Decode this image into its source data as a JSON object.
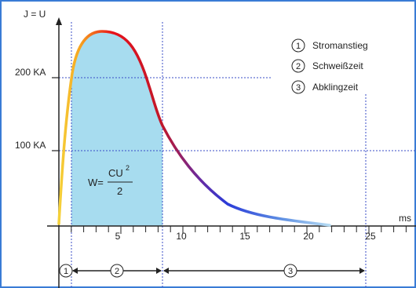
{
  "diagram": {
    "y_axis_label": "J = U",
    "x_axis_unit": "ms",
    "y_ticks": [
      {
        "label": "200 KA",
        "value": 200
      },
      {
        "label": "100 KA",
        "value": 100
      }
    ],
    "x_ticks": [
      {
        "label": "5",
        "value": 5
      },
      {
        "label": "10",
        "value": 10
      },
      {
        "label": "15",
        "value": 15
      },
      {
        "label": "20",
        "value": 20
      },
      {
        "label": "25",
        "value": 25
      }
    ],
    "legend": [
      {
        "number": "1",
        "label": "Stromanstieg"
      },
      {
        "number": "2",
        "label": "Schweißzeit"
      },
      {
        "number": "3",
        "label": "Abklingzeit"
      }
    ],
    "phase_markers": [
      "1",
      "2",
      "3"
    ],
    "formula": {
      "prefix": "W=",
      "numerator": "CU",
      "exponent": "2",
      "denominator": "2"
    },
    "colors": {
      "frame": "#3a7bd5",
      "area_fill": "#a7dcef",
      "curve_start": "#f5d23a",
      "curve_peak": "#e8111a",
      "curve_mid": "#2a3bd8",
      "curve_tail": "#a9d3f0",
      "guide": "#3a4cc7"
    }
  }
}
